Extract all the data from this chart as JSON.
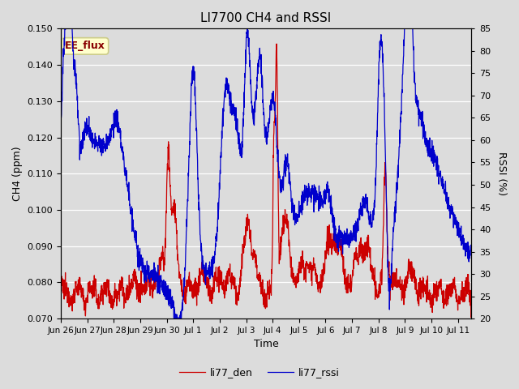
{
  "title": "LI7700 CH4 and RSSI",
  "xlabel": "Time",
  "ylabel_left": "CH4 (ppm)",
  "ylabel_right": "RSSI (%)",
  "ylim_left": [
    0.07,
    0.15
  ],
  "ylim_right": [
    20,
    85
  ],
  "yticks_left": [
    0.07,
    0.08,
    0.09,
    0.1,
    0.11,
    0.12,
    0.13,
    0.14,
    0.15
  ],
  "yticks_right": [
    20,
    25,
    30,
    35,
    40,
    45,
    50,
    55,
    60,
    65,
    70,
    75,
    80,
    85
  ],
  "bg_color": "#dcdcdc",
  "plot_bg_color": "#dcdcdc",
  "line_color_red": "#cc0000",
  "line_color_blue": "#0000cc",
  "legend_label_red": "li77_den",
  "legend_label_blue": "li77_rssi",
  "annotation_text": "EE_flux",
  "annotation_bg": "#ffffcc",
  "annotation_border": "#cccc88",
  "title_fontsize": 11,
  "label_fontsize": 9,
  "tick_fontsize": 8
}
